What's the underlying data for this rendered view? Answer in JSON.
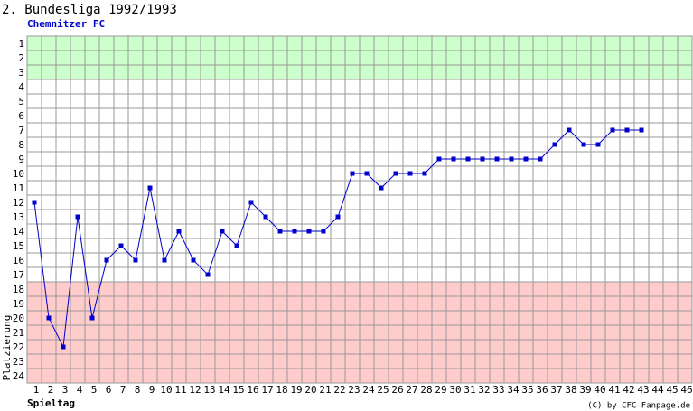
{
  "chart_data": {
    "type": "line",
    "title": "2. Bundesliga 1992/1993",
    "subtitle": "Chemnitzer FC",
    "x_label": "Spieltag",
    "y_label": "Platzierung",
    "footer": "(C) by CFC-Fanpage.de",
    "xlim": [
      0.5,
      46.5
    ],
    "ylim": [
      24.5,
      0.5
    ],
    "xticks": [
      1,
      2,
      3,
      4,
      5,
      6,
      7,
      8,
      9,
      10,
      11,
      12,
      13,
      14,
      15,
      16,
      17,
      18,
      19,
      20,
      21,
      22,
      23,
      24,
      25,
      26,
      27,
      28,
      29,
      30,
      31,
      32,
      33,
      34,
      35,
      36,
      37,
      38,
      39,
      40,
      41,
      42,
      43,
      44,
      45,
      46
    ],
    "yticks": [
      1,
      2,
      3,
      4,
      5,
      6,
      7,
      8,
      9,
      10,
      11,
      12,
      13,
      14,
      15,
      16,
      17,
      18,
      19,
      20,
      21,
      22,
      23,
      24
    ],
    "grid": true,
    "zones": [
      {
        "from": 1,
        "to": 3,
        "color": "#ccffcc"
      },
      {
        "from": 18,
        "to": 24,
        "color": "#ffcccc"
      }
    ],
    "x": [
      1,
      2,
      3,
      4,
      5,
      6,
      7,
      8,
      9,
      10,
      11,
      12,
      13,
      14,
      15,
      16,
      17,
      18,
      19,
      20,
      21,
      22,
      23,
      24,
      25,
      26,
      27,
      28,
      29,
      30,
      31,
      32,
      33,
      34,
      35,
      36,
      37,
      38,
      39,
      40,
      41,
      42,
      43
    ],
    "series": [
      {
        "color": "#0000cc",
        "values": [
          12,
          20,
          22,
          13,
          20,
          16,
          15,
          16,
          11,
          16,
          14,
          16,
          17,
          14,
          15,
          12,
          13,
          14,
          14,
          14,
          14,
          13,
          10,
          10,
          11,
          10,
          10,
          10,
          9,
          9,
          9,
          9,
          9,
          9,
          9,
          9,
          8,
          7,
          8,
          8,
          7,
          7,
          7
        ]
      }
    ]
  }
}
